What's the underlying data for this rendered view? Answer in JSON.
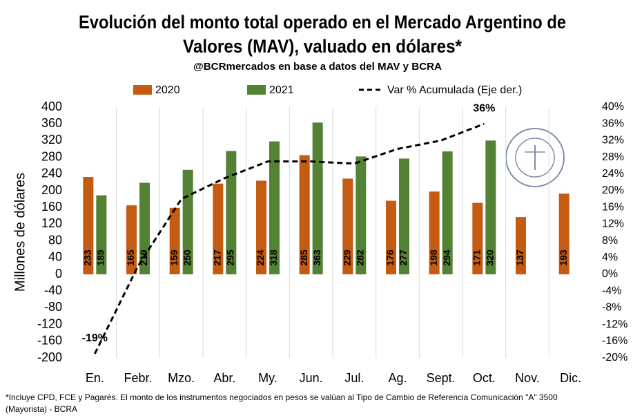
{
  "chart_data": {
    "type": "bar",
    "title": [
      "Evolución del monto total operado en el Mercado Argentino de",
      "Valores (MAV), valuado en dólares*"
    ],
    "subtitle": "@BCRmercados en base a datos del MAV y BCRA",
    "y_label": "Millones de dólares",
    "categories": [
      "En.",
      "Febr.",
      "Mzo.",
      "Abr.",
      "My.",
      "Jun.",
      "Jul.",
      "Ag.",
      "Sept.",
      "Oct.",
      "Nov.",
      "Dic."
    ],
    "series": [
      {
        "name": "2020",
        "color": "#c55a11",
        "values": [
          233,
          165,
          159,
          217,
          224,
          285,
          229,
          176,
          198,
          171,
          137,
          193
        ]
      },
      {
        "name": "2021",
        "color": "#548235",
        "values": [
          189,
          219,
          250,
          295,
          318,
          363,
          282,
          277,
          294,
          320,
          null,
          null
        ]
      },
      {
        "name": "Var % Acumulada (Eje der.)",
        "color": "#000000",
        "type": "line",
        "axis": "y2",
        "values": [
          -19,
          2,
          18,
          23,
          27,
          27,
          26.5,
          30,
          32,
          36,
          null,
          null
        ],
        "value_labels": [
          "-19%",
          null,
          null,
          null,
          null,
          null,
          null,
          null,
          null,
          "36%",
          null,
          null
        ]
      }
    ],
    "ylim": [
      -200,
      400
    ],
    "yticks": [
      -200,
      -160,
      -120,
      -80,
      -40,
      0,
      40,
      80,
      120,
      160,
      200,
      240,
      280,
      320,
      360,
      400
    ],
    "y2lim": [
      -20,
      40
    ],
    "y2ticks": [
      {
        "value": -20,
        "label": "-20%"
      },
      {
        "value": -16,
        "label": "-16%"
      },
      {
        "value": -12,
        "label": "-12%"
      },
      {
        "value": -8,
        "label": "-8%"
      },
      {
        "value": -4,
        "label": "-4%"
      },
      {
        "value": 0,
        "label": "0%"
      },
      {
        "value": 4,
        "label": "4%"
      },
      {
        "value": 8,
        "label": "8%"
      },
      {
        "value": 12,
        "label": "12%"
      },
      {
        "value": 16,
        "label": "16%"
      },
      {
        "value": 20,
        "label": "20%"
      },
      {
        "value": 24,
        "label": "24%"
      },
      {
        "value": 28,
        "label": "28%"
      },
      {
        "value": 32,
        "label": "32%"
      },
      {
        "value": 36,
        "label": "36%"
      },
      {
        "value": 40,
        "label": "40%"
      }
    ],
    "footnote": [
      "*Incluye CPD, FCE y Pagarés. El monto de los instrumentos  negociados en pesos se valúan al Tipo de Cambio de Referencia Comunicación \"A\" 3500",
      "(Mayorista) - BCRA"
    ]
  }
}
